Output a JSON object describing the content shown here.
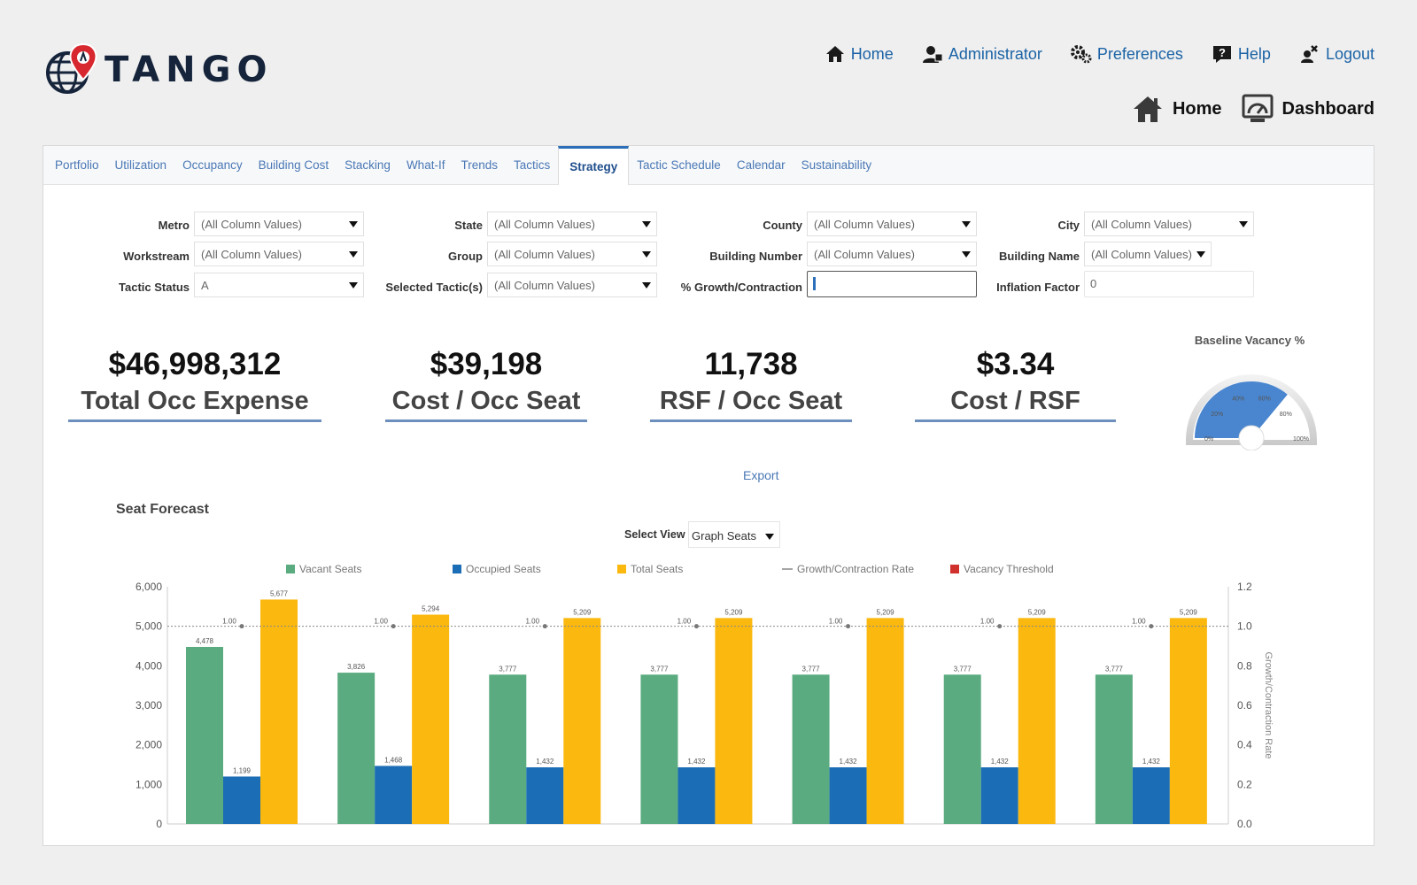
{
  "brand": {
    "name": "TANGO"
  },
  "topnav": [
    {
      "label": "Home",
      "icon": "home-icon"
    },
    {
      "label": "Administrator",
      "icon": "administrator-icon"
    },
    {
      "label": "Preferences",
      "icon": "gears-icon"
    },
    {
      "label": "Help",
      "icon": "help-icon"
    },
    {
      "label": "Logout",
      "icon": "logout-icon"
    }
  ],
  "subnav": [
    {
      "label": "Home",
      "icon": "home-icon"
    },
    {
      "label": "Dashboard",
      "icon": "dashboard-icon"
    }
  ],
  "tabs": [
    "Portfolio",
    "Utilization",
    "Occupancy",
    "Building Cost",
    "Stacking",
    "What-If",
    "Trends",
    "Tactics",
    "Strategy",
    "Tactic Schedule",
    "Calendar",
    "Sustainability"
  ],
  "active_tab": "Strategy",
  "filters": {
    "metro": {
      "label": "Metro",
      "value": "(All Column Values)"
    },
    "state": {
      "label": "State",
      "value": "(All Column Values)"
    },
    "county": {
      "label": "County",
      "value": "(All Column Values)"
    },
    "city": {
      "label": "City",
      "value": "(All Column Values)"
    },
    "workstream": {
      "label": "Workstream",
      "value": "(All Column Values)"
    },
    "group": {
      "label": "Group",
      "value": "(All Column Values)"
    },
    "building_number": {
      "label": "Building Number",
      "value": "(All Column Values)"
    },
    "building_name": {
      "label": "Building Name",
      "value": "(All Column Values)"
    },
    "tactic_status": {
      "label": "Tactic Status",
      "value": "A"
    },
    "selected_tactics": {
      "label": "Selected Tactic(s)",
      "value": "(All Column Values)"
    },
    "growth": {
      "label": "% Growth/Contraction",
      "value": ""
    },
    "inflation": {
      "label": "Inflation Factor",
      "value": "0"
    }
  },
  "kpis": [
    {
      "value": "$46,998,312",
      "label": "Total Occ Expense"
    },
    {
      "value": "$39,198",
      "label": "Cost / Occ Seat"
    },
    {
      "value": "11,738",
      "label": "RSF / Occ Seat"
    },
    {
      "value": "$3.34",
      "label": "Cost / RSF"
    }
  ],
  "gauge": {
    "title": "Baseline Vacancy %",
    "ticks": [
      "0%",
      "20%",
      "40%",
      "60%",
      "80%",
      "100%"
    ],
    "value_fraction": 0.72,
    "color": "#4a86cf"
  },
  "export_label": "Export",
  "section_title": "Seat Forecast",
  "select_view": {
    "label": "Select View",
    "value": "Graph Seats"
  },
  "chart_data": {
    "type": "bar",
    "series": [
      {
        "name": "Vacant Seats",
        "color": "#5aab7f",
        "values": [
          4478,
          3826,
          3777,
          3777,
          3777,
          3777,
          3777
        ],
        "labels": [
          "4,478",
          "3,826",
          "3,777",
          "3,777",
          "3,777",
          "3,777",
          "3,777"
        ]
      },
      {
        "name": "Occupied Seats",
        "color": "#1b6db5",
        "values": [
          1199,
          1468,
          1432,
          1432,
          1432,
          1432,
          1432
        ],
        "labels": [
          "1,199",
          "1,468",
          "1,432",
          "1,432",
          "1,432",
          "1,432",
          "1,432"
        ]
      },
      {
        "name": "Total Seats",
        "color": "#fbb80f",
        "values": [
          5677,
          5294,
          5209,
          5209,
          5209,
          5209,
          5209
        ],
        "labels": [
          "5,677",
          "5,294",
          "5,209",
          "5,209",
          "5,209",
          "5,209",
          "5,209"
        ]
      }
    ],
    "line_series": [
      {
        "name": "Growth/Contraction Rate",
        "color": "#888888",
        "values": [
          1.0,
          1.0,
          1.0,
          1.0,
          1.0,
          1.0,
          1.0
        ],
        "labels": [
          "1.00",
          "1.00",
          "1.00",
          "1.00",
          "1.00",
          "1.00",
          "1.00"
        ]
      },
      {
        "name": "Vacancy Threshold",
        "color": "#d0312d",
        "values": []
      }
    ],
    "ylim": [
      0,
      6000
    ],
    "yticks": [
      "0",
      "1,000",
      "2,000",
      "3,000",
      "4,000",
      "5,000",
      "6,000"
    ],
    "y2lim": [
      0,
      1.2
    ],
    "y2ticks": [
      "0.0",
      "0.2",
      "0.4",
      "0.6",
      "0.8",
      "1.0",
      "1.2"
    ],
    "y2label": "Growth/Contraction Rate",
    "legend_position": "top"
  }
}
